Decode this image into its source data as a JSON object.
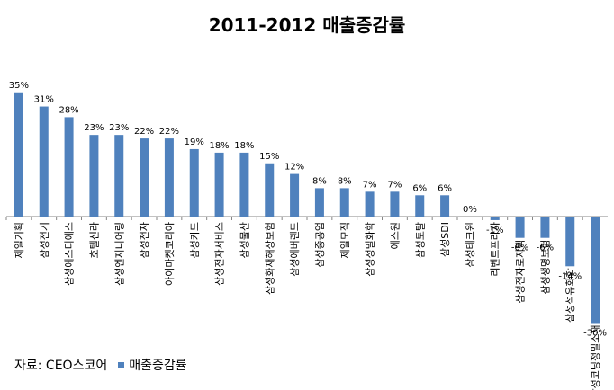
{
  "chart_data": {
    "type": "bar",
    "title": "2011-2012 매출증감률",
    "categories": [
      "제일기획",
      "삼성전기",
      "삼성에스디에스",
      "호텔신라",
      "삼성엔지니어링",
      "삼성전자",
      "아이마켓코리아",
      "삼성카드",
      "삼성전자서비스",
      "삼성물산",
      "삼성화재해상보험",
      "삼성에버랜드",
      "삼성중공업",
      "제일모직",
      "삼성정밀화학",
      "에스원",
      "삼성토탈",
      "삼성SDI",
      "삼성테크윈",
      "리벤트프라자",
      "삼성전자로지텍",
      "삼성생명보험",
      "삼성석유화학",
      "삼성코닝정밀소재"
    ],
    "series": [
      {
        "name": "매출증감률",
        "values": [
          35,
          31,
          28,
          23,
          23,
          22,
          22,
          19,
          18,
          18,
          15,
          12,
          8,
          8,
          7,
          7,
          6,
          6,
          0,
          -1,
          -6,
          -6,
          -14,
          -30
        ]
      }
    ],
    "value_labels": [
      "35%",
      "31%",
      "28%",
      "23%",
      "23%",
      "22%",
      "22%",
      "19%",
      "18%",
      "18%",
      "15%",
      "12%",
      "8%",
      "8%",
      "7%",
      "7%",
      "6%",
      "6%",
      "0%",
      "-1%",
      "-6%",
      "-6%",
      "-14%",
      "-30%"
    ],
    "xlabel": "",
    "ylabel": "",
    "ylim": [
      -30,
      35
    ],
    "grid": false,
    "legend": "bottom-left",
    "bar_color": "#4F81BD"
  },
  "footer": {
    "source": "자료: CEO스코어",
    "legend_label": "매출증감률"
  }
}
